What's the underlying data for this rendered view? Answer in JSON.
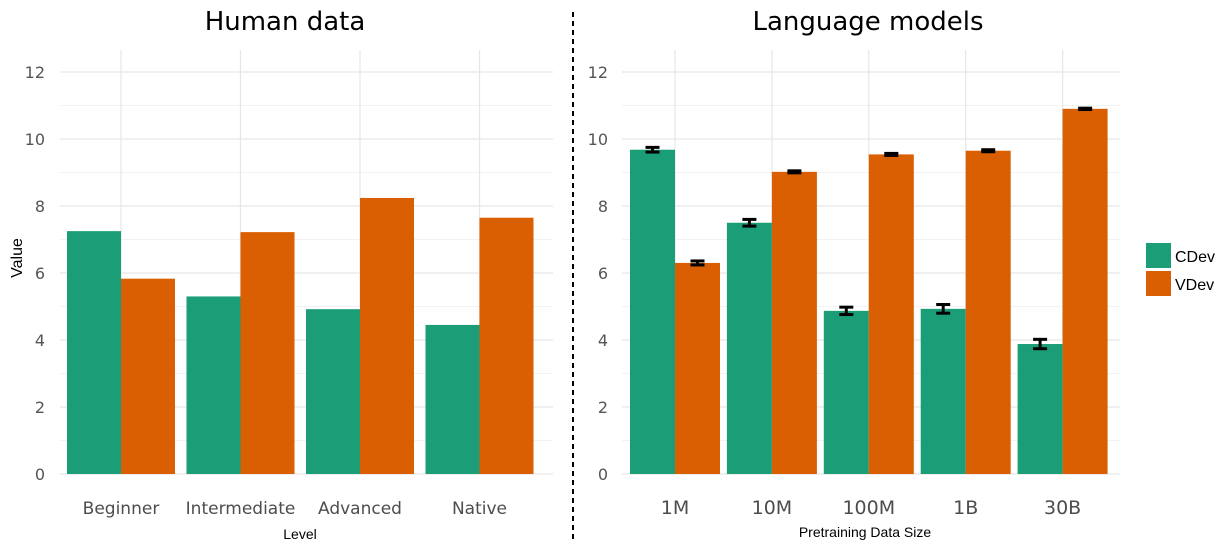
{
  "chart_data": [
    {
      "type": "bar",
      "title": "Human data",
      "xlabel": "Level",
      "ylabel": "Value",
      "ylim": [
        0,
        12.5
      ],
      "yticks": [
        0,
        2,
        4,
        6,
        8,
        10,
        12
      ],
      "categories": [
        "Beginner",
        "Intermediate",
        "Advanced",
        "Native"
      ],
      "series": [
        {
          "name": "CDev",
          "color": "#1b9e77",
          "values": [
            7.25,
            5.3,
            4.92,
            4.45
          ]
        },
        {
          "name": "VDev",
          "color": "#d95f02",
          "values": [
            5.83,
            7.22,
            8.24,
            7.65
          ]
        }
      ],
      "grid": true
    },
    {
      "type": "bar",
      "title": "Language models",
      "xlabel": "Pretraining Data Size",
      "ylabel": "",
      "ylim": [
        0,
        12.5
      ],
      "yticks": [
        0,
        2,
        4,
        6,
        8,
        10,
        12
      ],
      "categories": [
        "1M",
        "10M",
        "100M",
        "1B",
        "30B"
      ],
      "series": [
        {
          "name": "CDev",
          "color": "#1b9e77",
          "values": [
            9.68,
            7.5,
            4.87,
            4.93,
            3.88
          ],
          "error": [
            0.07,
            0.1,
            0.11,
            0.13,
            0.14
          ]
        },
        {
          "name": "VDev",
          "color": "#d95f02",
          "values": [
            6.3,
            9.02,
            9.54,
            9.65,
            10.9
          ],
          "error": [
            0.06,
            0.03,
            0.03,
            0.03,
            0.02
          ]
        }
      ],
      "grid": true
    }
  ],
  "legend": {
    "position": "right",
    "items": [
      {
        "label": "CDev",
        "color": "#1b9e77"
      },
      {
        "label": "VDev",
        "color": "#d95f02"
      }
    ]
  }
}
